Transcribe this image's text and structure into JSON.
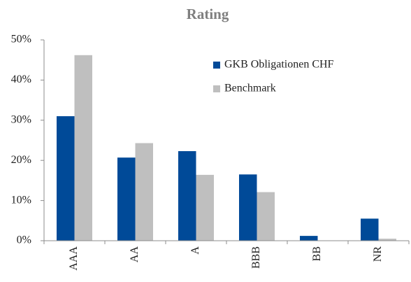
{
  "chart_data": {
    "type": "bar",
    "title": "Rating",
    "categories": [
      "AAA",
      "AA",
      "A",
      "BBB",
      "BB",
      "NR"
    ],
    "series": [
      {
        "name": "GKB Obligationen CHF",
        "color": "#004a98",
        "values": [
          31,
          20.7,
          22.3,
          16.5,
          1.2,
          5.5
        ]
      },
      {
        "name": "Benchmark",
        "color": "#bfbfbf",
        "values": [
          46.2,
          24.3,
          16.4,
          12.1,
          0,
          0.5
        ]
      }
    ],
    "ylim": [
      0,
      50
    ],
    "yticks": [
      {
        "value": 0,
        "label": "0%"
      },
      {
        "value": 10,
        "label": "10%"
      },
      {
        "value": 20,
        "label": "20%"
      },
      {
        "value": 30,
        "label": "30%"
      },
      {
        "value": 40,
        "label": "40%"
      },
      {
        "value": 50,
        "label": "50%"
      }
    ],
    "grid": false,
    "legend": "upper right"
  }
}
